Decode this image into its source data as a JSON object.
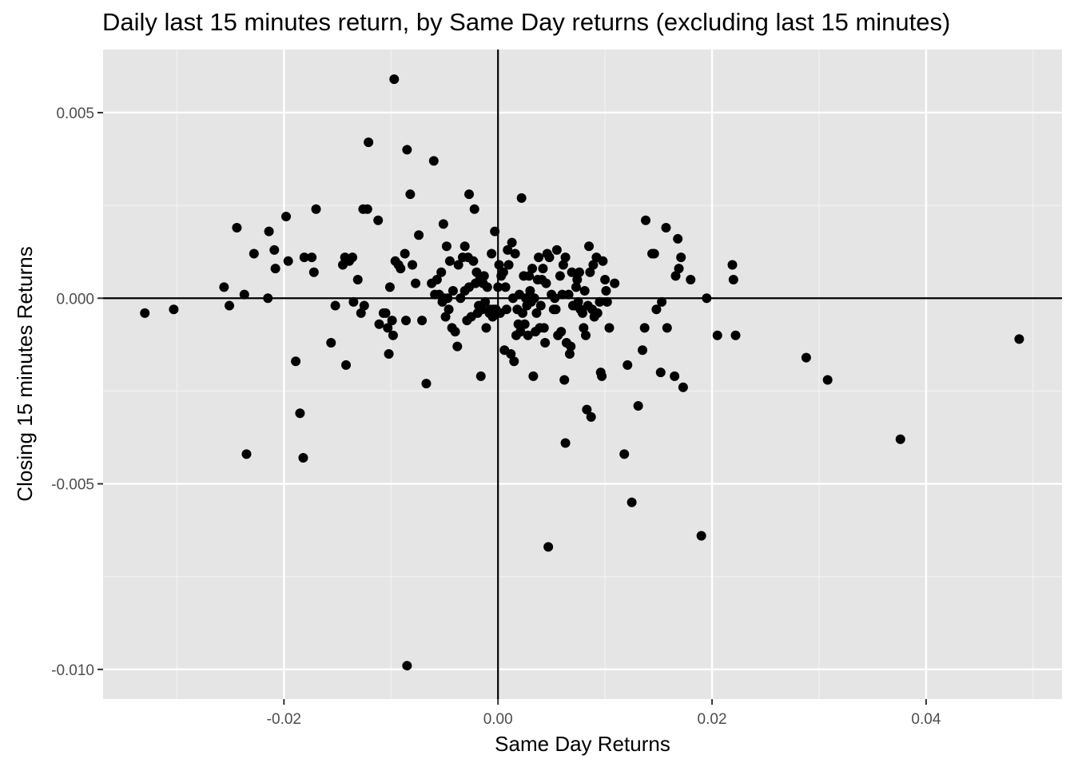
{
  "chart_data": {
    "type": "scatter",
    "title": "Daily last 15 minutes return, by Same Day returns (excluding last 15 minutes)",
    "xlabel": "Same Day Returns",
    "ylabel": "Closing 15 minutes Returns",
    "xlim": [
      -0.0369,
      0.0527
    ],
    "ylim": [
      -0.0108,
      0.0067
    ],
    "xticks": [
      -0.02,
      0.0,
      0.02,
      0.04
    ],
    "xtick_labels": [
      "-0.02",
      "0.00",
      "0.02",
      "0.04"
    ],
    "yticks": [
      -0.01,
      -0.005,
      0.0,
      0.005
    ],
    "ytick_labels": [
      "-0.010",
      "-0.005",
      "0.000",
      "0.005"
    ],
    "reference_lines": {
      "x": 0,
      "y": 0
    },
    "background": "#e5e5e5",
    "grid": true,
    "point_color": "#000000",
    "points": [
      [
        -0.033,
        -0.0004
      ],
      [
        -0.0303,
        -0.0003
      ],
      [
        -0.0256,
        0.0003
      ],
      [
        -0.0251,
        -0.0002
      ],
      [
        -0.0244,
        0.0019
      ],
      [
        -0.0237,
        0.0001
      ],
      [
        -0.0235,
        -0.0042
      ],
      [
        -0.0228,
        0.0012
      ],
      [
        -0.0215,
        0.0
      ],
      [
        -0.0214,
        0.0018
      ],
      [
        -0.0209,
        0.0013
      ],
      [
        -0.0208,
        0.0008
      ],
      [
        -0.0198,
        0.0022
      ],
      [
        -0.0196,
        0.001
      ],
      [
        -0.0189,
        -0.0017
      ],
      [
        -0.0185,
        -0.0031
      ],
      [
        -0.0182,
        -0.0043
      ],
      [
        -0.0181,
        0.0011
      ],
      [
        -0.0174,
        0.0011
      ],
      [
        -0.0172,
        0.0007
      ],
      [
        -0.017,
        0.0024
      ],
      [
        -0.0156,
        -0.0012
      ],
      [
        -0.0152,
        -0.0002
      ],
      [
        -0.0145,
        0.0009
      ],
      [
        -0.0143,
        0.0011
      ],
      [
        -0.0142,
        -0.0018
      ],
      [
        -0.0139,
        0.001
      ],
      [
        -0.0136,
        0.0011
      ],
      [
        -0.0135,
        -0.0001
      ],
      [
        -0.0131,
        0.0005
      ],
      [
        -0.0128,
        -0.0004
      ],
      [
        -0.0126,
        0.0024
      ],
      [
        -0.0125,
        -0.0002
      ],
      [
        -0.0122,
        0.0024
      ],
      [
        -0.0121,
        0.0042
      ],
      [
        -0.0112,
        0.0021
      ],
      [
        -0.0111,
        -0.0007
      ],
      [
        -0.0107,
        -0.0004
      ],
      [
        -0.0105,
        -0.0004
      ],
      [
        -0.0103,
        -0.0008
      ],
      [
        -0.0102,
        -0.0015
      ],
      [
        -0.0101,
        0.0003
      ],
      [
        -0.0099,
        -0.0006
      ],
      [
        -0.0098,
        -0.001
      ],
      [
        -0.0097,
        0.0059
      ],
      [
        -0.0096,
        0.001
      ],
      [
        -0.0093,
        0.0009
      ],
      [
        -0.0091,
        0.0008
      ],
      [
        -0.0087,
        0.0012
      ],
      [
        -0.0086,
        -0.0006
      ],
      [
        -0.0085,
        0.004
      ],
      [
        -0.0085,
        -0.0099
      ],
      [
        -0.0082,
        0.0028
      ],
      [
        -0.008,
        0.0009
      ],
      [
        -0.0077,
        0.0004
      ],
      [
        -0.0074,
        0.0017
      ],
      [
        -0.0071,
        -0.0006
      ],
      [
        -0.0067,
        -0.0023
      ],
      [
        -0.0062,
        0.0004
      ],
      [
        -0.006,
        0.0037
      ],
      [
        -0.0059,
        0.0001
      ],
      [
        -0.0057,
        0.0005
      ],
      [
        -0.0055,
        0.0001
      ],
      [
        -0.0053,
        0.0007
      ],
      [
        -0.0052,
        -0.0001
      ],
      [
        -0.0051,
        0.002
      ],
      [
        -0.005,
        0.0
      ],
      [
        -0.0049,
        -0.0005
      ],
      [
        -0.0048,
        0.0014
      ],
      [
        -0.0047,
        0.0
      ],
      [
        -0.0046,
        -0.0003
      ],
      [
        -0.0045,
        0.001
      ],
      [
        -0.0043,
        -0.0008
      ],
      [
        -0.0042,
        0.0002
      ],
      [
        -0.004,
        -0.0009
      ],
      [
        -0.0038,
        -0.0013
      ],
      [
        -0.0037,
        0.0009
      ],
      [
        -0.0035,
        0.0
      ],
      [
        -0.0033,
        0.0011
      ],
      [
        -0.0031,
        0.0002
      ],
      [
        -0.0031,
        0.0014
      ],
      [
        -0.0029,
        -0.0006
      ],
      [
        -0.0028,
        0.0011
      ],
      [
        -0.0027,
        0.0003
      ],
      [
        -0.0027,
        0.0028
      ],
      [
        -0.0025,
        -0.0005
      ],
      [
        -0.0023,
        0.001
      ],
      [
        -0.0022,
        0.0024
      ],
      [
        -0.0021,
        0.0004
      ],
      [
        -0.002,
        0.0007
      ],
      [
        -0.0019,
        -0.0004
      ],
      [
        -0.0018,
        -0.0002
      ],
      [
        -0.0017,
        0.0005
      ],
      [
        -0.0016,
        -0.0021
      ],
      [
        -0.0015,
        -0.0003
      ],
      [
        -0.0014,
        0.0004
      ],
      [
        -0.0013,
        0.0006
      ],
      [
        -0.0012,
        -0.0001
      ],
      [
        -0.0011,
        -0.0008
      ],
      [
        -0.001,
        0.0003
      ],
      [
        -0.0008,
        -0.0004
      ],
      [
        -0.0007,
        -0.0003
      ],
      [
        -0.0006,
        0.0012
      ],
      [
        -0.0005,
        -0.0005
      ],
      [
        -0.0004,
        -0.0003
      ],
      [
        -0.0003,
        0.0018
      ],
      [
        -0.0002,
        -0.0003
      ],
      [
        0.0,
        0.0003
      ],
      [
        0.0001,
        0.0009
      ],
      [
        0.0002,
        -0.0004
      ],
      [
        0.0003,
        0.0006
      ],
      [
        0.0005,
        0.0007
      ],
      [
        0.0006,
        -0.0014
      ],
      [
        0.0007,
        0.0003
      ],
      [
        0.0008,
        -0.0003
      ],
      [
        0.0009,
        0.0013
      ],
      [
        0.001,
        0.0009
      ],
      [
        0.0012,
        -0.0015
      ],
      [
        0.0013,
        0.0015
      ],
      [
        0.0014,
        0.0
      ],
      [
        0.0015,
        -0.0017
      ],
      [
        0.0016,
        0.0012
      ],
      [
        0.0017,
        -0.001
      ],
      [
        0.0018,
        -0.0003
      ],
      [
        0.0019,
        -0.0007
      ],
      [
        0.002,
        0.0001
      ],
      [
        0.0021,
        -0.0009
      ],
      [
        0.0022,
        0.0027
      ],
      [
        0.0023,
        -0.0004
      ],
      [
        0.0024,
        0.0006
      ],
      [
        0.0025,
        -0.0007
      ],
      [
        0.0026,
        0.0
      ],
      [
        0.0027,
        -0.0002
      ],
      [
        0.0028,
        -0.001
      ],
      [
        0.0029,
        0.0006
      ],
      [
        0.003,
        0.0002
      ],
      [
        0.0031,
        -0.0001
      ],
      [
        0.0032,
        0.0008
      ],
      [
        0.0033,
        -0.0021
      ],
      [
        0.0034,
        0.0
      ],
      [
        0.0035,
        -0.0009
      ],
      [
        0.0036,
        -0.0004
      ],
      [
        0.0037,
        0.0005
      ],
      [
        0.0038,
        0.0011
      ],
      [
        0.0039,
        -0.0008
      ],
      [
        0.004,
        -0.0002
      ],
      [
        0.0041,
        0.0005
      ],
      [
        0.0042,
        0.0008
      ],
      [
        0.0043,
        -0.0008
      ],
      [
        0.0044,
        -0.0012
      ],
      [
        0.0045,
        0.0004
      ],
      [
        0.0046,
        0.0012
      ],
      [
        0.0047,
        -0.0067
      ],
      [
        0.0048,
        0.0011
      ],
      [
        0.005,
        0.0001
      ],
      [
        0.0052,
        -0.0003
      ],
      [
        0.0053,
        0.0
      ],
      [
        0.0054,
        -0.0003
      ],
      [
        0.0055,
        0.0013
      ],
      [
        0.0056,
        -0.001
      ],
      [
        0.0058,
        0.0006
      ],
      [
        0.0059,
        -0.0009
      ],
      [
        0.006,
        0.0001
      ],
      [
        0.0061,
        0.0009
      ],
      [
        0.0062,
        -0.0022
      ],
      [
        0.0063,
        -0.0039
      ],
      [
        0.0063,
        0.0011
      ],
      [
        0.0064,
        -0.0012
      ],
      [
        0.0066,
        0.0001
      ],
      [
        0.0067,
        -0.0015
      ],
      [
        0.0068,
        -0.0013
      ],
      [
        0.0069,
        0.0007
      ],
      [
        0.007,
        -0.0002
      ],
      [
        0.0072,
        -0.0002
      ],
      [
        0.0073,
        0.0003
      ],
      [
        0.0074,
        0.0005
      ],
      [
        0.0075,
        -0.0001
      ],
      [
        0.0076,
        0.0007
      ],
      [
        0.0077,
        -0.0003
      ],
      [
        0.0079,
        -0.0004
      ],
      [
        0.008,
        -0.0008
      ],
      [
        0.0081,
        0.0002
      ],
      [
        0.0082,
        -0.001
      ],
      [
        0.0083,
        -0.003
      ],
      [
        0.0084,
        -0.0002
      ],
      [
        0.0085,
        0.0014
      ],
      [
        0.0086,
        0.0007
      ],
      [
        0.0087,
        -0.0032
      ],
      [
        0.0088,
        -0.0003
      ],
      [
        0.0089,
        0.0009
      ],
      [
        0.009,
        -0.0005
      ],
      [
        0.0092,
        0.0011
      ],
      [
        0.0093,
        -0.0004
      ],
      [
        0.0095,
        -0.0001
      ],
      [
        0.0096,
        -0.002
      ],
      [
        0.0097,
        -0.0021
      ],
      [
        0.0098,
        0.001
      ],
      [
        0.01,
        0.0005
      ],
      [
        0.0101,
        0.0002
      ],
      [
        0.0102,
        -0.0001
      ],
      [
        0.0104,
        -0.0008
      ],
      [
        0.0109,
        0.0004
      ],
      [
        0.0118,
        -0.0042
      ],
      [
        0.0121,
        -0.0018
      ],
      [
        0.0125,
        -0.0055
      ],
      [
        0.0131,
        -0.0029
      ],
      [
        0.0135,
        -0.0014
      ],
      [
        0.0137,
        -0.0008
      ],
      [
        0.0138,
        0.0021
      ],
      [
        0.0144,
        0.0012
      ],
      [
        0.0146,
        0.0012
      ],
      [
        0.0148,
        -0.0003
      ],
      [
        0.0152,
        -0.002
      ],
      [
        0.0153,
        -0.0001
      ],
      [
        0.0157,
        0.0019
      ],
      [
        0.0158,
        -0.0008
      ],
      [
        0.0165,
        -0.0021
      ],
      [
        0.0166,
        0.0006
      ],
      [
        0.0168,
        0.0016
      ],
      [
        0.0169,
        0.0008
      ],
      [
        0.0171,
        0.0011
      ],
      [
        0.0173,
        -0.0024
      ],
      [
        0.018,
        0.0005
      ],
      [
        0.019,
        -0.0064
      ],
      [
        0.0195,
        0.0
      ],
      [
        0.0205,
        -0.001
      ],
      [
        0.0219,
        0.0009
      ],
      [
        0.022,
        0.0005
      ],
      [
        0.0222,
        -0.001
      ],
      [
        0.0288,
        -0.0016
      ],
      [
        0.0308,
        -0.0022
      ],
      [
        0.0376,
        -0.0038
      ],
      [
        0.0487,
        -0.0011
      ]
    ]
  }
}
